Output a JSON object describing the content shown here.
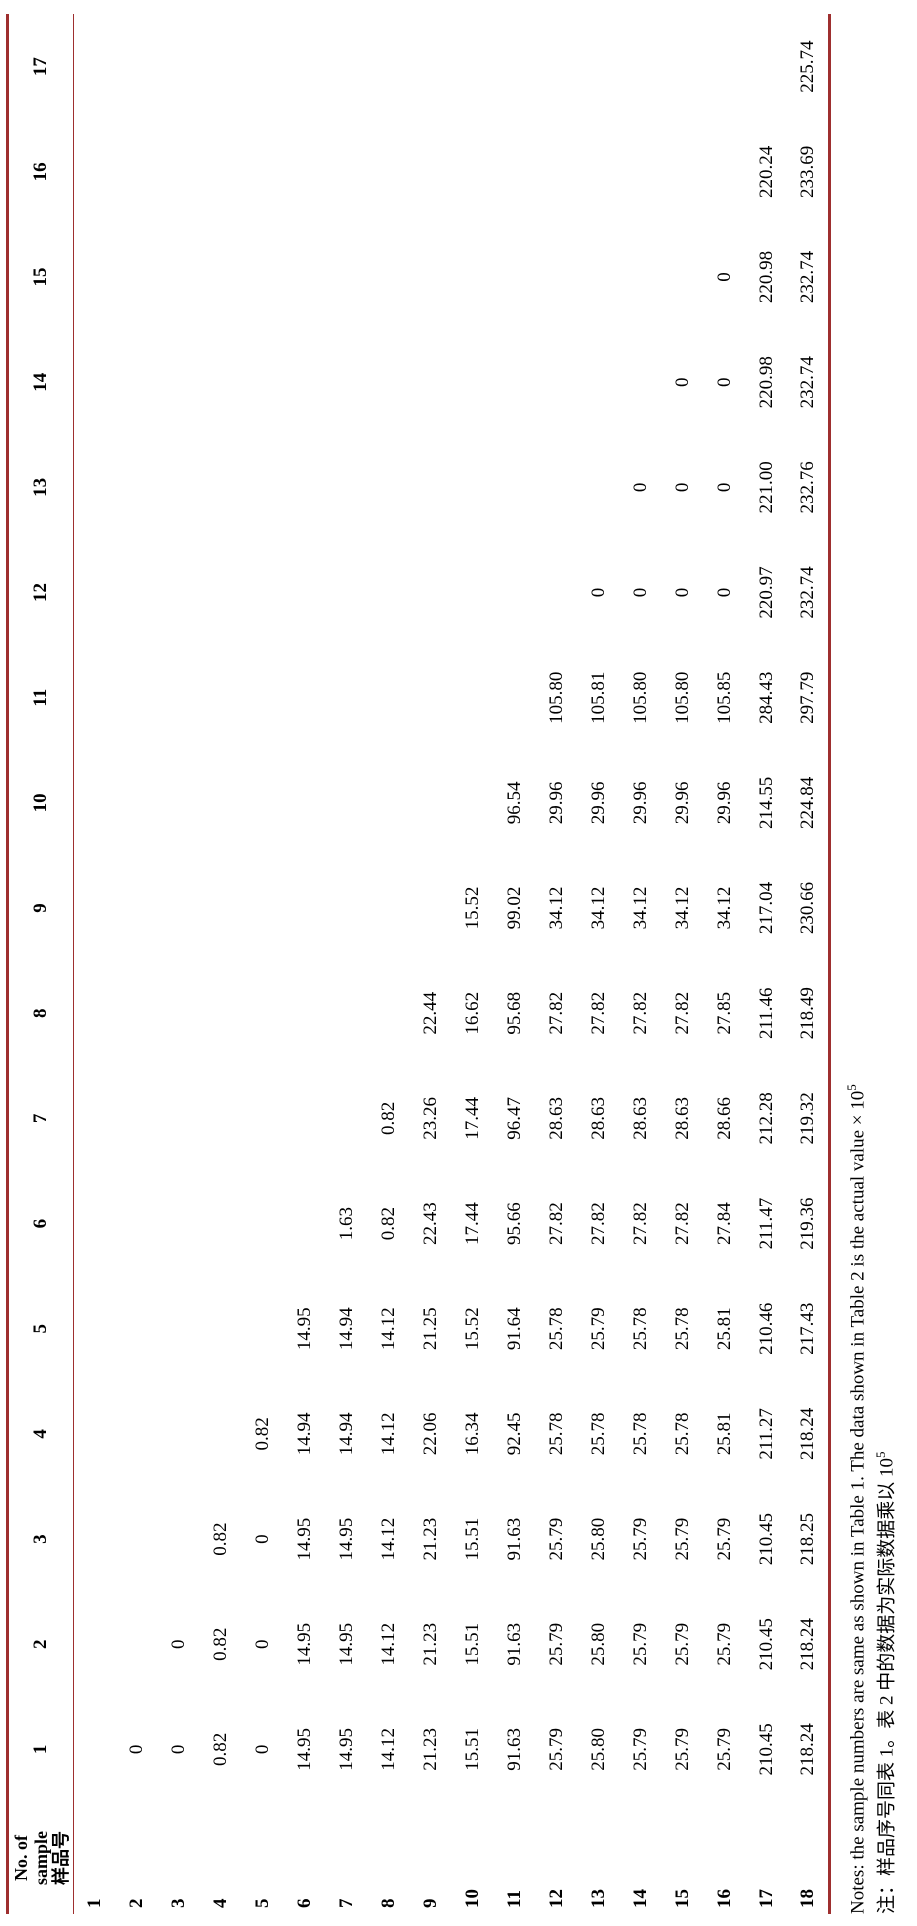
{
  "document": {
    "background": "#ffffff",
    "rule_color": "#9e2f2f"
  },
  "table": {
    "header": {
      "first_column": {
        "en_line1": "No. of",
        "en_line2": "sample",
        "cn": "样品号"
      },
      "columns": [
        "1",
        "2",
        "3",
        "4",
        "5",
        "6",
        "7",
        "8",
        "9",
        "10",
        "11",
        "12",
        "13",
        "14",
        "15",
        "16",
        "17"
      ]
    },
    "rows": [
      {
        "sample": "1",
        "values": []
      },
      {
        "sample": "2",
        "values": [
          "0"
        ]
      },
      {
        "sample": "3",
        "values": [
          "0",
          "0"
        ]
      },
      {
        "sample": "4",
        "values": [
          "0.82",
          "0.82",
          "0.82"
        ]
      },
      {
        "sample": "5",
        "values": [
          "0",
          "0",
          "0",
          "0.82"
        ]
      },
      {
        "sample": "6",
        "values": [
          "14.95",
          "14.95",
          "14.95",
          "14.94",
          "14.95"
        ]
      },
      {
        "sample": "7",
        "values": [
          "14.95",
          "14.95",
          "14.95",
          "14.94",
          "14.94",
          "1.63"
        ]
      },
      {
        "sample": "8",
        "values": [
          "14.12",
          "14.12",
          "14.12",
          "14.12",
          "14.12",
          "0.82",
          "0.82"
        ]
      },
      {
        "sample": "9",
        "values": [
          "21.23",
          "21.23",
          "21.23",
          "22.06",
          "21.25",
          "22.43",
          "23.26",
          "22.44"
        ]
      },
      {
        "sample": "10",
        "values": [
          "15.51",
          "15.51",
          "15.51",
          "16.34",
          "15.52",
          "17.44",
          "17.44",
          "16.62",
          "15.52"
        ]
      },
      {
        "sample": "11",
        "values": [
          "91.63",
          "91.63",
          "91.63",
          "92.45",
          "91.64",
          "95.66",
          "96.47",
          "95.68",
          "99.02",
          "96.54"
        ]
      },
      {
        "sample": "12",
        "values": [
          "25.79",
          "25.79",
          "25.79",
          "25.78",
          "25.78",
          "27.82",
          "28.63",
          "27.82",
          "34.12",
          "29.96",
          "105.80"
        ]
      },
      {
        "sample": "13",
        "values": [
          "25.80",
          "25.80",
          "25.80",
          "25.78",
          "25.79",
          "27.82",
          "28.63",
          "27.82",
          "34.12",
          "29.96",
          "105.81",
          "0"
        ]
      },
      {
        "sample": "14",
        "values": [
          "25.79",
          "25.79",
          "25.79",
          "25.78",
          "25.78",
          "27.82",
          "28.63",
          "27.82",
          "34.12",
          "29.96",
          "105.80",
          "0",
          "0"
        ]
      },
      {
        "sample": "15",
        "values": [
          "25.79",
          "25.79",
          "25.79",
          "25.78",
          "25.78",
          "27.82",
          "28.63",
          "27.82",
          "34.12",
          "29.96",
          "105.80",
          "0",
          "0",
          "0"
        ]
      },
      {
        "sample": "16",
        "values": [
          "25.79",
          "25.79",
          "25.79",
          "25.81",
          "25.81",
          "27.84",
          "28.66",
          "27.85",
          "34.12",
          "29.96",
          "105.85",
          "0",
          "0",
          "0",
          "0"
        ]
      },
      {
        "sample": "17",
        "values": [
          "210.45",
          "210.45",
          "210.45",
          "211.27",
          "210.46",
          "211.47",
          "212.28",
          "211.46",
          "217.04",
          "214.55",
          "284.43",
          "220.97",
          "221.00",
          "220.98",
          "220.98",
          "220.24"
        ]
      },
      {
        "sample": "18",
        "values": [
          "218.24",
          "218.24",
          "218.25",
          "218.24",
          "217.43",
          "219.36",
          "219.32",
          "218.49",
          "230.66",
          "224.84",
          "297.79",
          "232.74",
          "232.76",
          "232.74",
          "232.74",
          "233.69",
          "225.74"
        ]
      }
    ]
  },
  "notes": {
    "en_text": "Notes: the sample numbers are same as shown in Table 1. The data shown in Table 2 is the actual value × 10",
    "en_exponent": "5",
    "cn_text": "注：样品序号同表 1。表 2 中的数据为实际数据乘以 10",
    "cn_exponent": "5"
  }
}
